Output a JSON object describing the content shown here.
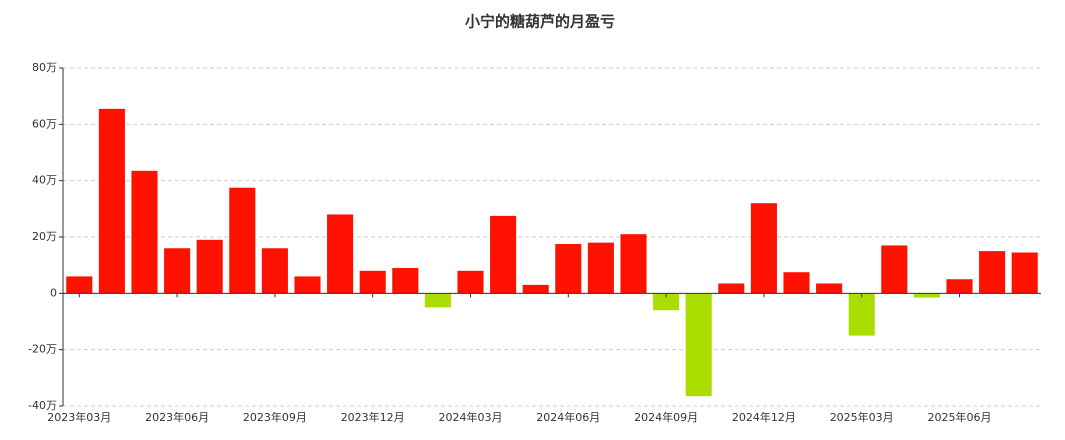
{
  "chart_data": {
    "type": "bar",
    "title": "小宁的糖葫芦的月盈亏",
    "categories": [
      "2023年03月",
      null,
      null,
      "2023年06月",
      null,
      null,
      "2023年09月",
      null,
      null,
      "2023年12月",
      null,
      null,
      "2024年03月",
      null,
      null,
      "2024年06月",
      null,
      null,
      "2024年09月",
      null,
      null,
      "2024年12月",
      null,
      null,
      "2025年03月",
      null,
      null,
      "2025年06月",
      null,
      null
    ],
    "values": [
      6,
      65.5,
      43.5,
      16,
      19,
      37.5,
      16,
      6,
      28,
      8,
      9,
      -5,
      8,
      27.5,
      3,
      17.5,
      18,
      21,
      -6,
      -36.5,
      3.5,
      32,
      7.5,
      3.5,
      -15,
      17,
      -1.5,
      5,
      15,
      14.5
    ],
    "positive_color": "#ff1100",
    "negative_color": "#aadd00",
    "ylim": [
      -40,
      80
    ],
    "yticks": [
      {
        "value": -40,
        "label": "-40万"
      },
      {
        "value": -20,
        "label": "-20万"
      },
      0,
      {
        "value": 20,
        "label": "20万"
      },
      {
        "value": 40,
        "label": "40万"
      },
      {
        "value": 60,
        "label": "60万"
      },
      {
        "value": 80,
        "label": "80万"
      }
    ],
    "grid": true
  }
}
